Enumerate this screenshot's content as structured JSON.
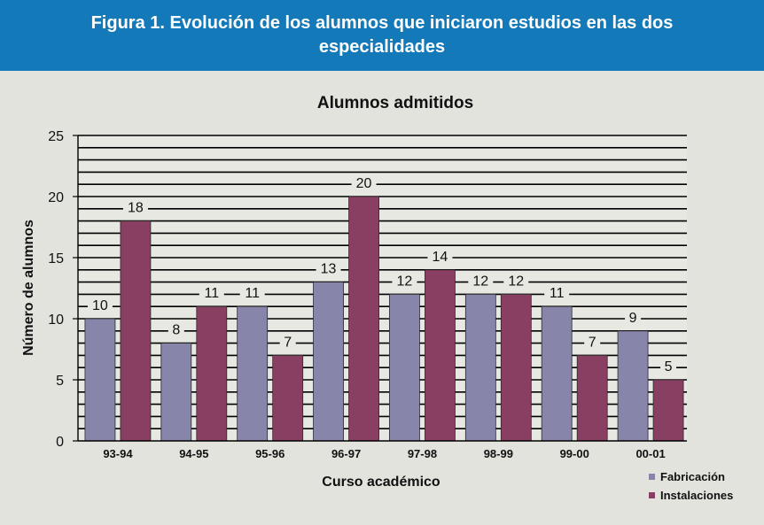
{
  "header": {
    "title": "Figura 1. Evolución de los alumnos que iniciaron estudios en las dos especialidades"
  },
  "colors": {
    "header_bg": "#1379b8",
    "background": "#e1e3dc",
    "fabricacion": "#8885ab",
    "instalaciones": "#883f62"
  },
  "chart_data": {
    "type": "bar",
    "title": "Alumnos admitidos",
    "xlabel": "Curso académico",
    "ylabel": "Número de alumnos",
    "ylim": [
      0,
      25
    ],
    "yticks": [
      0,
      5,
      10,
      15,
      20,
      25
    ],
    "grid": true,
    "legend": "bottom-right",
    "categories": [
      "93-94",
      "94-95",
      "95-96",
      "96-97",
      "97-98",
      "98-99",
      "99-00",
      "00-01"
    ],
    "series": [
      {
        "name": "Fabricación",
        "values": [
          10,
          8,
          11,
          13,
          12,
          12,
          11,
          9
        ]
      },
      {
        "name": "Instalaciones",
        "values": [
          18,
          11,
          7,
          20,
          14,
          12,
          7,
          5
        ]
      }
    ]
  }
}
